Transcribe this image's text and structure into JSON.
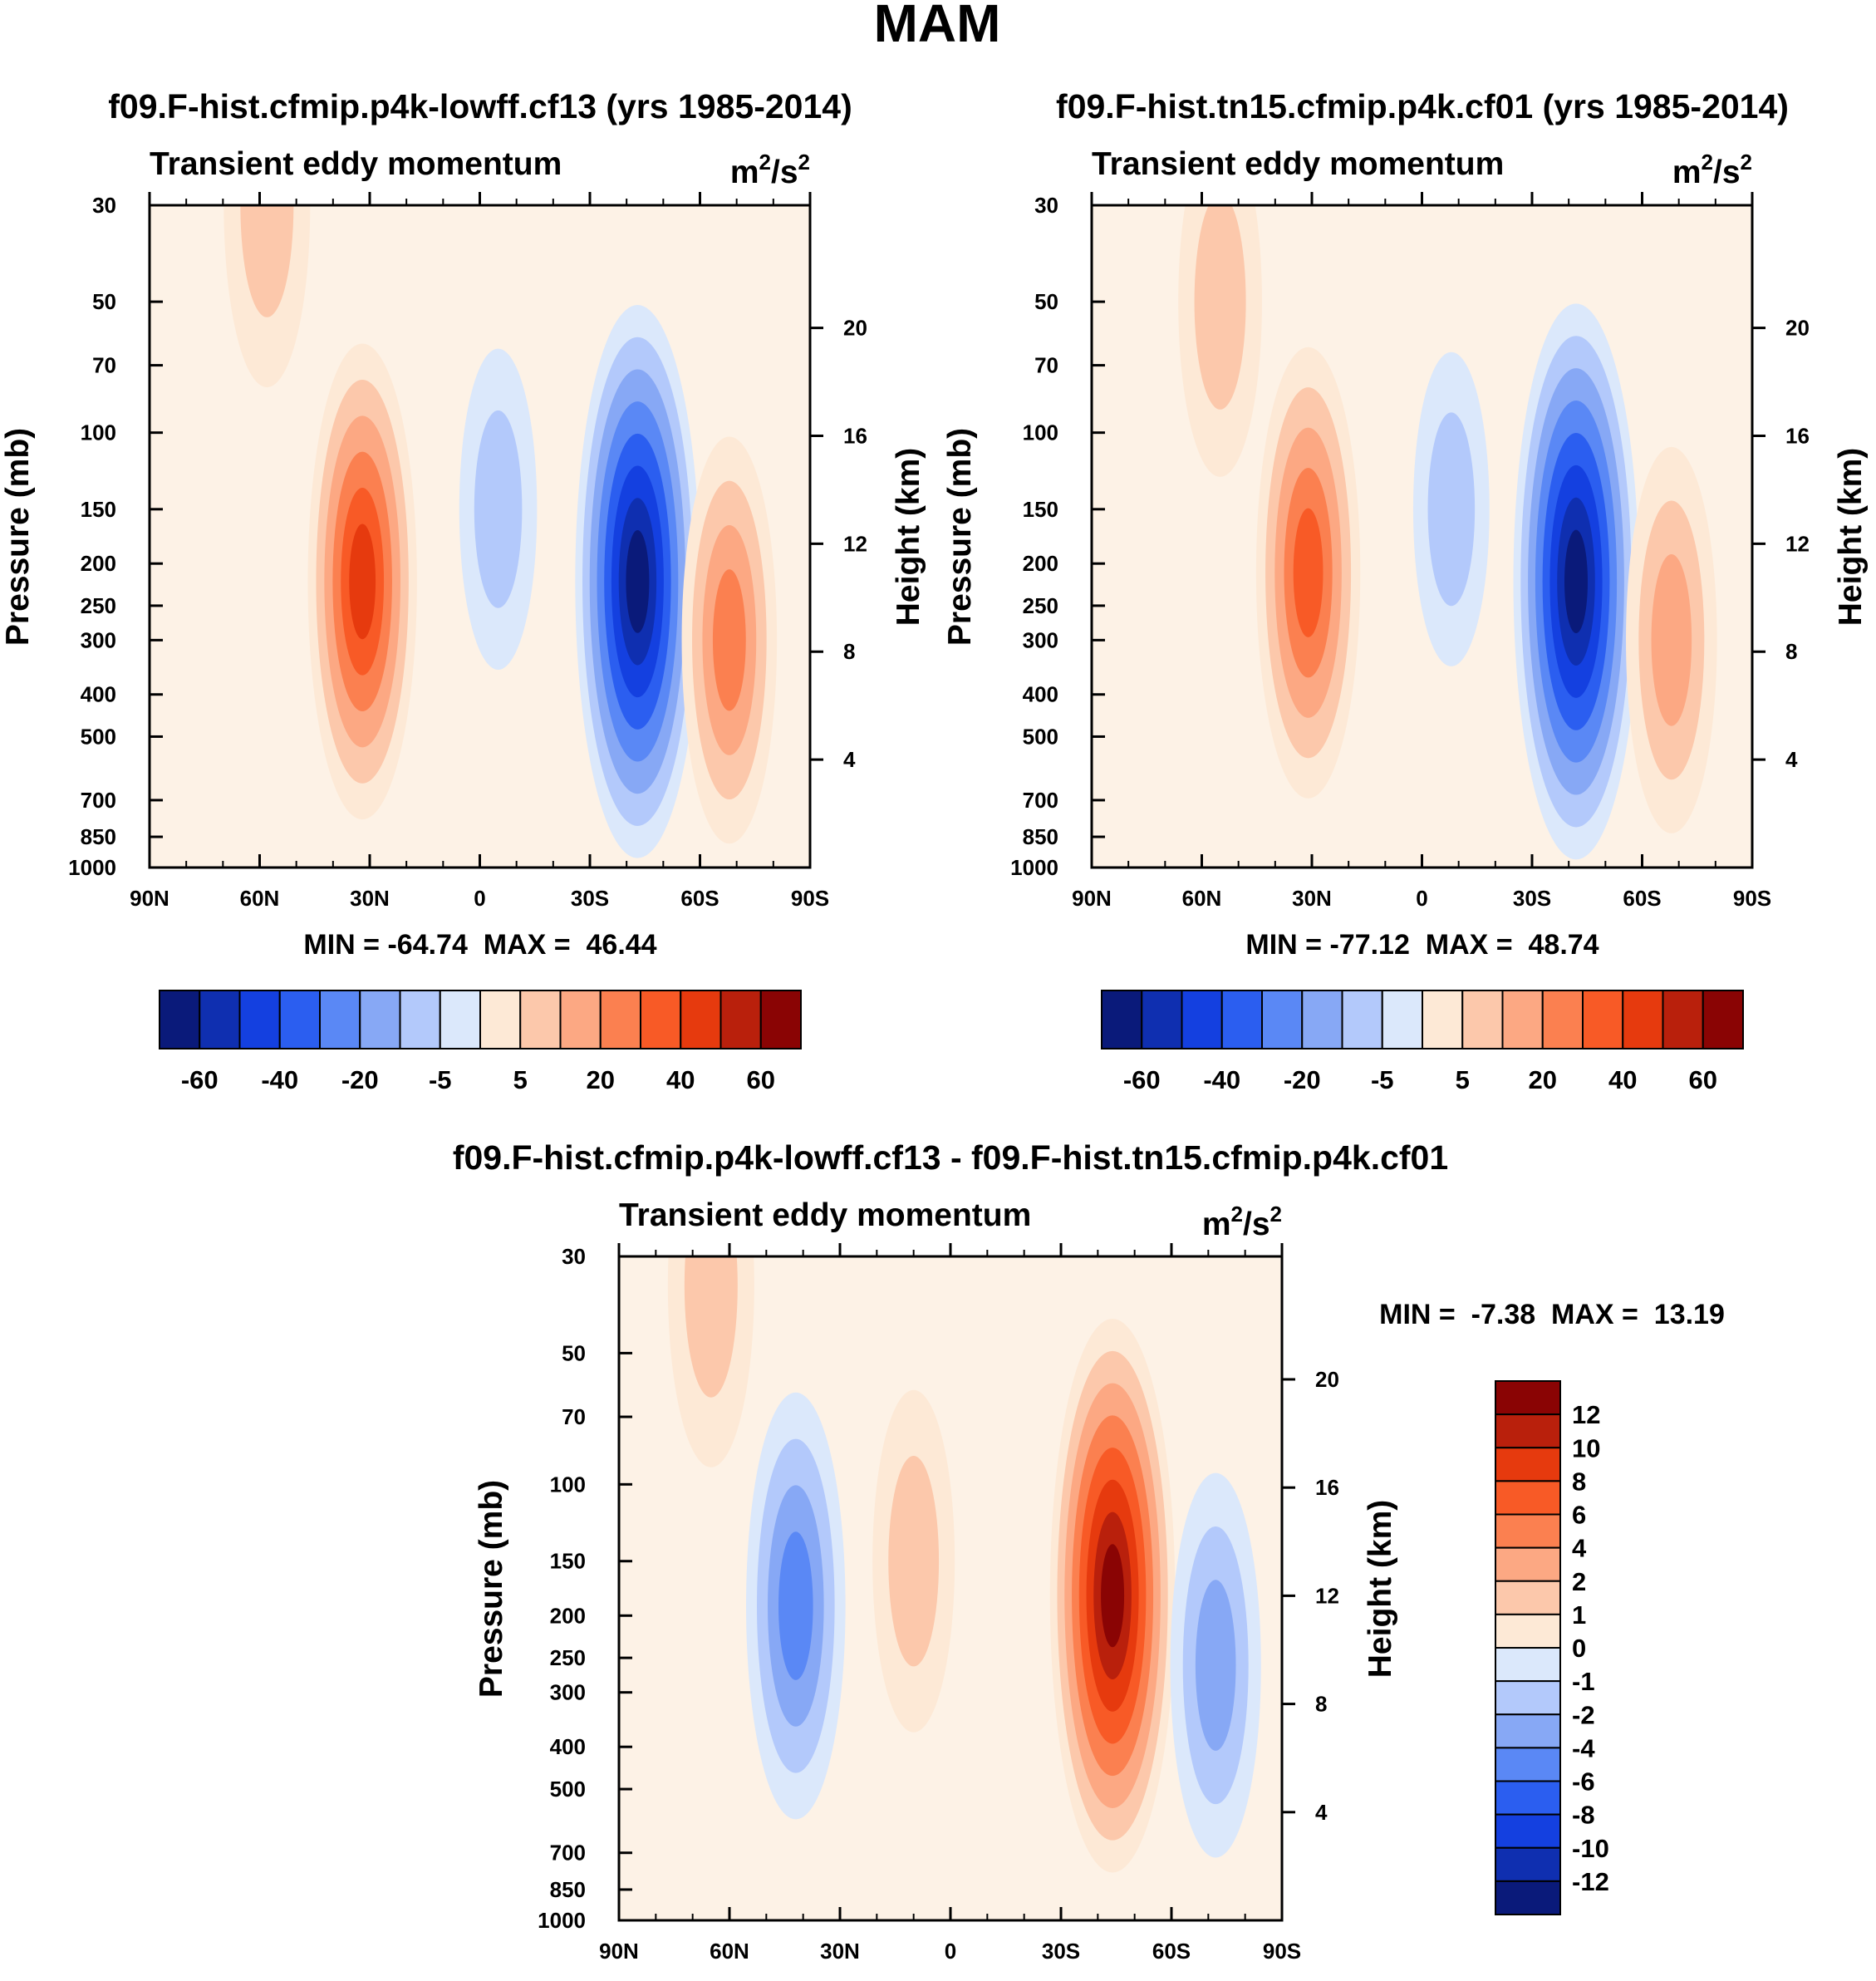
{
  "figure": {
    "title": "MAM",
    "colors": {
      "neg": [
        "#0a1a7a",
        "#0f2fb0",
        "#1440e0",
        "#2b5ef0",
        "#5a88f5",
        "#87a8f5",
        "#b3c9fb",
        "#dbe8fb"
      ],
      "pos": [
        "#fde9d6",
        "#fcc8ab",
        "#fca883",
        "#fb8050",
        "#f85a26",
        "#e63a0e",
        "#b9200c",
        "#8a0404"
      ]
    }
  },
  "chart_data": [
    {
      "type": "contour",
      "title": "f09.F-hist.cfmip.p4k-lowff.cf13 (yrs 1985-2014)",
      "subtitle_left": "Transient eddy momentum",
      "units": "m²/s²",
      "ylabel": "Pressure (mb)",
      "ylabel_right": "Height (km)",
      "x_ticks": [
        "90N",
        "60N",
        "30N",
        "0",
        "30S",
        "60S",
        "90S"
      ],
      "y_ticks": [
        "30",
        "50",
        "70",
        "100",
        "150",
        "200",
        "250",
        "300",
        "400",
        "500",
        "700",
        "850",
        "1000"
      ],
      "y_ticks_right": [
        "20",
        "16",
        "12",
        "8",
        "4"
      ],
      "minmax": "MIN = -64.74  MAX =  46.44",
      "min": -64.74,
      "max": 46.44,
      "colorbar_labels": [
        "-60",
        "-40",
        "-20",
        "-5",
        "5",
        "20",
        "40",
        "60"
      ],
      "features": [
        {
          "lat": 32,
          "p": 220,
          "value": 46,
          "sign": "pos"
        },
        {
          "lat": -43,
          "p": 220,
          "value": -64,
          "sign": "neg"
        },
        {
          "lat": -68,
          "p": 300,
          "value": 30,
          "sign": "pos"
        },
        {
          "lat": 58,
          "p": 30,
          "value": 20,
          "sign": "pos"
        },
        {
          "lat": -5,
          "p": 150,
          "value": -10,
          "sign": "neg"
        }
      ]
    },
    {
      "type": "contour",
      "title": "f09.F-hist.tn15.cfmip.p4k.cf01 (yrs 1985-2014)",
      "subtitle_left": "Transient eddy momentum",
      "units": "m²/s²",
      "ylabel": "Pressure (mb)",
      "ylabel_right": "Height (km)",
      "x_ticks": [
        "90N",
        "60N",
        "30N",
        "0",
        "30S",
        "60S",
        "90S"
      ],
      "y_ticks": [
        "30",
        "50",
        "70",
        "100",
        "150",
        "200",
        "250",
        "300",
        "400",
        "500",
        "700",
        "850",
        "1000"
      ],
      "y_ticks_right": [
        "20",
        "16",
        "12",
        "8",
        "4"
      ],
      "minmax": "MIN = -77.12  MAX =  48.74",
      "min": -77.12,
      "max": 48.74,
      "colorbar_labels": [
        "-60",
        "-40",
        "-20",
        "-5",
        "5",
        "20",
        "40",
        "60"
      ],
      "features": [
        {
          "lat": 31,
          "p": 210,
          "value": 48,
          "sign": "pos"
        },
        {
          "lat": -42,
          "p": 220,
          "value": -77,
          "sign": "neg"
        },
        {
          "lat": -68,
          "p": 300,
          "value": 30,
          "sign": "pos"
        },
        {
          "lat": 55,
          "p": 50,
          "value": 20,
          "sign": "pos"
        },
        {
          "lat": -8,
          "p": 150,
          "value": -10,
          "sign": "neg"
        }
      ]
    },
    {
      "type": "contour",
      "title": "f09.F-hist.cfmip.p4k-lowff.cf13 - f09.F-hist.tn15.cfmip.p4k.cf01",
      "subtitle_left": "Transient eddy momentum",
      "units": "m²/s²",
      "ylabel": "Pressure (mb)",
      "ylabel_right": "Height (km)",
      "x_ticks": [
        "90N",
        "60N",
        "30N",
        "0",
        "30S",
        "60S",
        "90S"
      ],
      "y_ticks": [
        "30",
        "50",
        "70",
        "100",
        "150",
        "200",
        "250",
        "300",
        "400",
        "500",
        "700",
        "850",
        "1000"
      ],
      "y_ticks_right": [
        "20",
        "16",
        "12",
        "8",
        "4"
      ],
      "minmax": "MIN =  -7.38  MAX =  13.19",
      "min": -7.38,
      "max": 13.19,
      "colorbar_labels": [
        "12",
        "10",
        "8",
        "6",
        "4",
        "2",
        "1",
        "0",
        "-1",
        "-2",
        "-4",
        "-6",
        "-8",
        "-10",
        "-12"
      ],
      "features": [
        {
          "lat": 42,
          "p": 190,
          "value": -7,
          "sign": "neg"
        },
        {
          "lat": -44,
          "p": 180,
          "value": 13,
          "sign": "pos"
        },
        {
          "lat": 65,
          "p": 35,
          "value": 4,
          "sign": "pos"
        },
        {
          "lat": -72,
          "p": 260,
          "value": -5,
          "sign": "neg"
        },
        {
          "lat": 10,
          "p": 150,
          "value": 3,
          "sign": "pos"
        }
      ]
    }
  ]
}
